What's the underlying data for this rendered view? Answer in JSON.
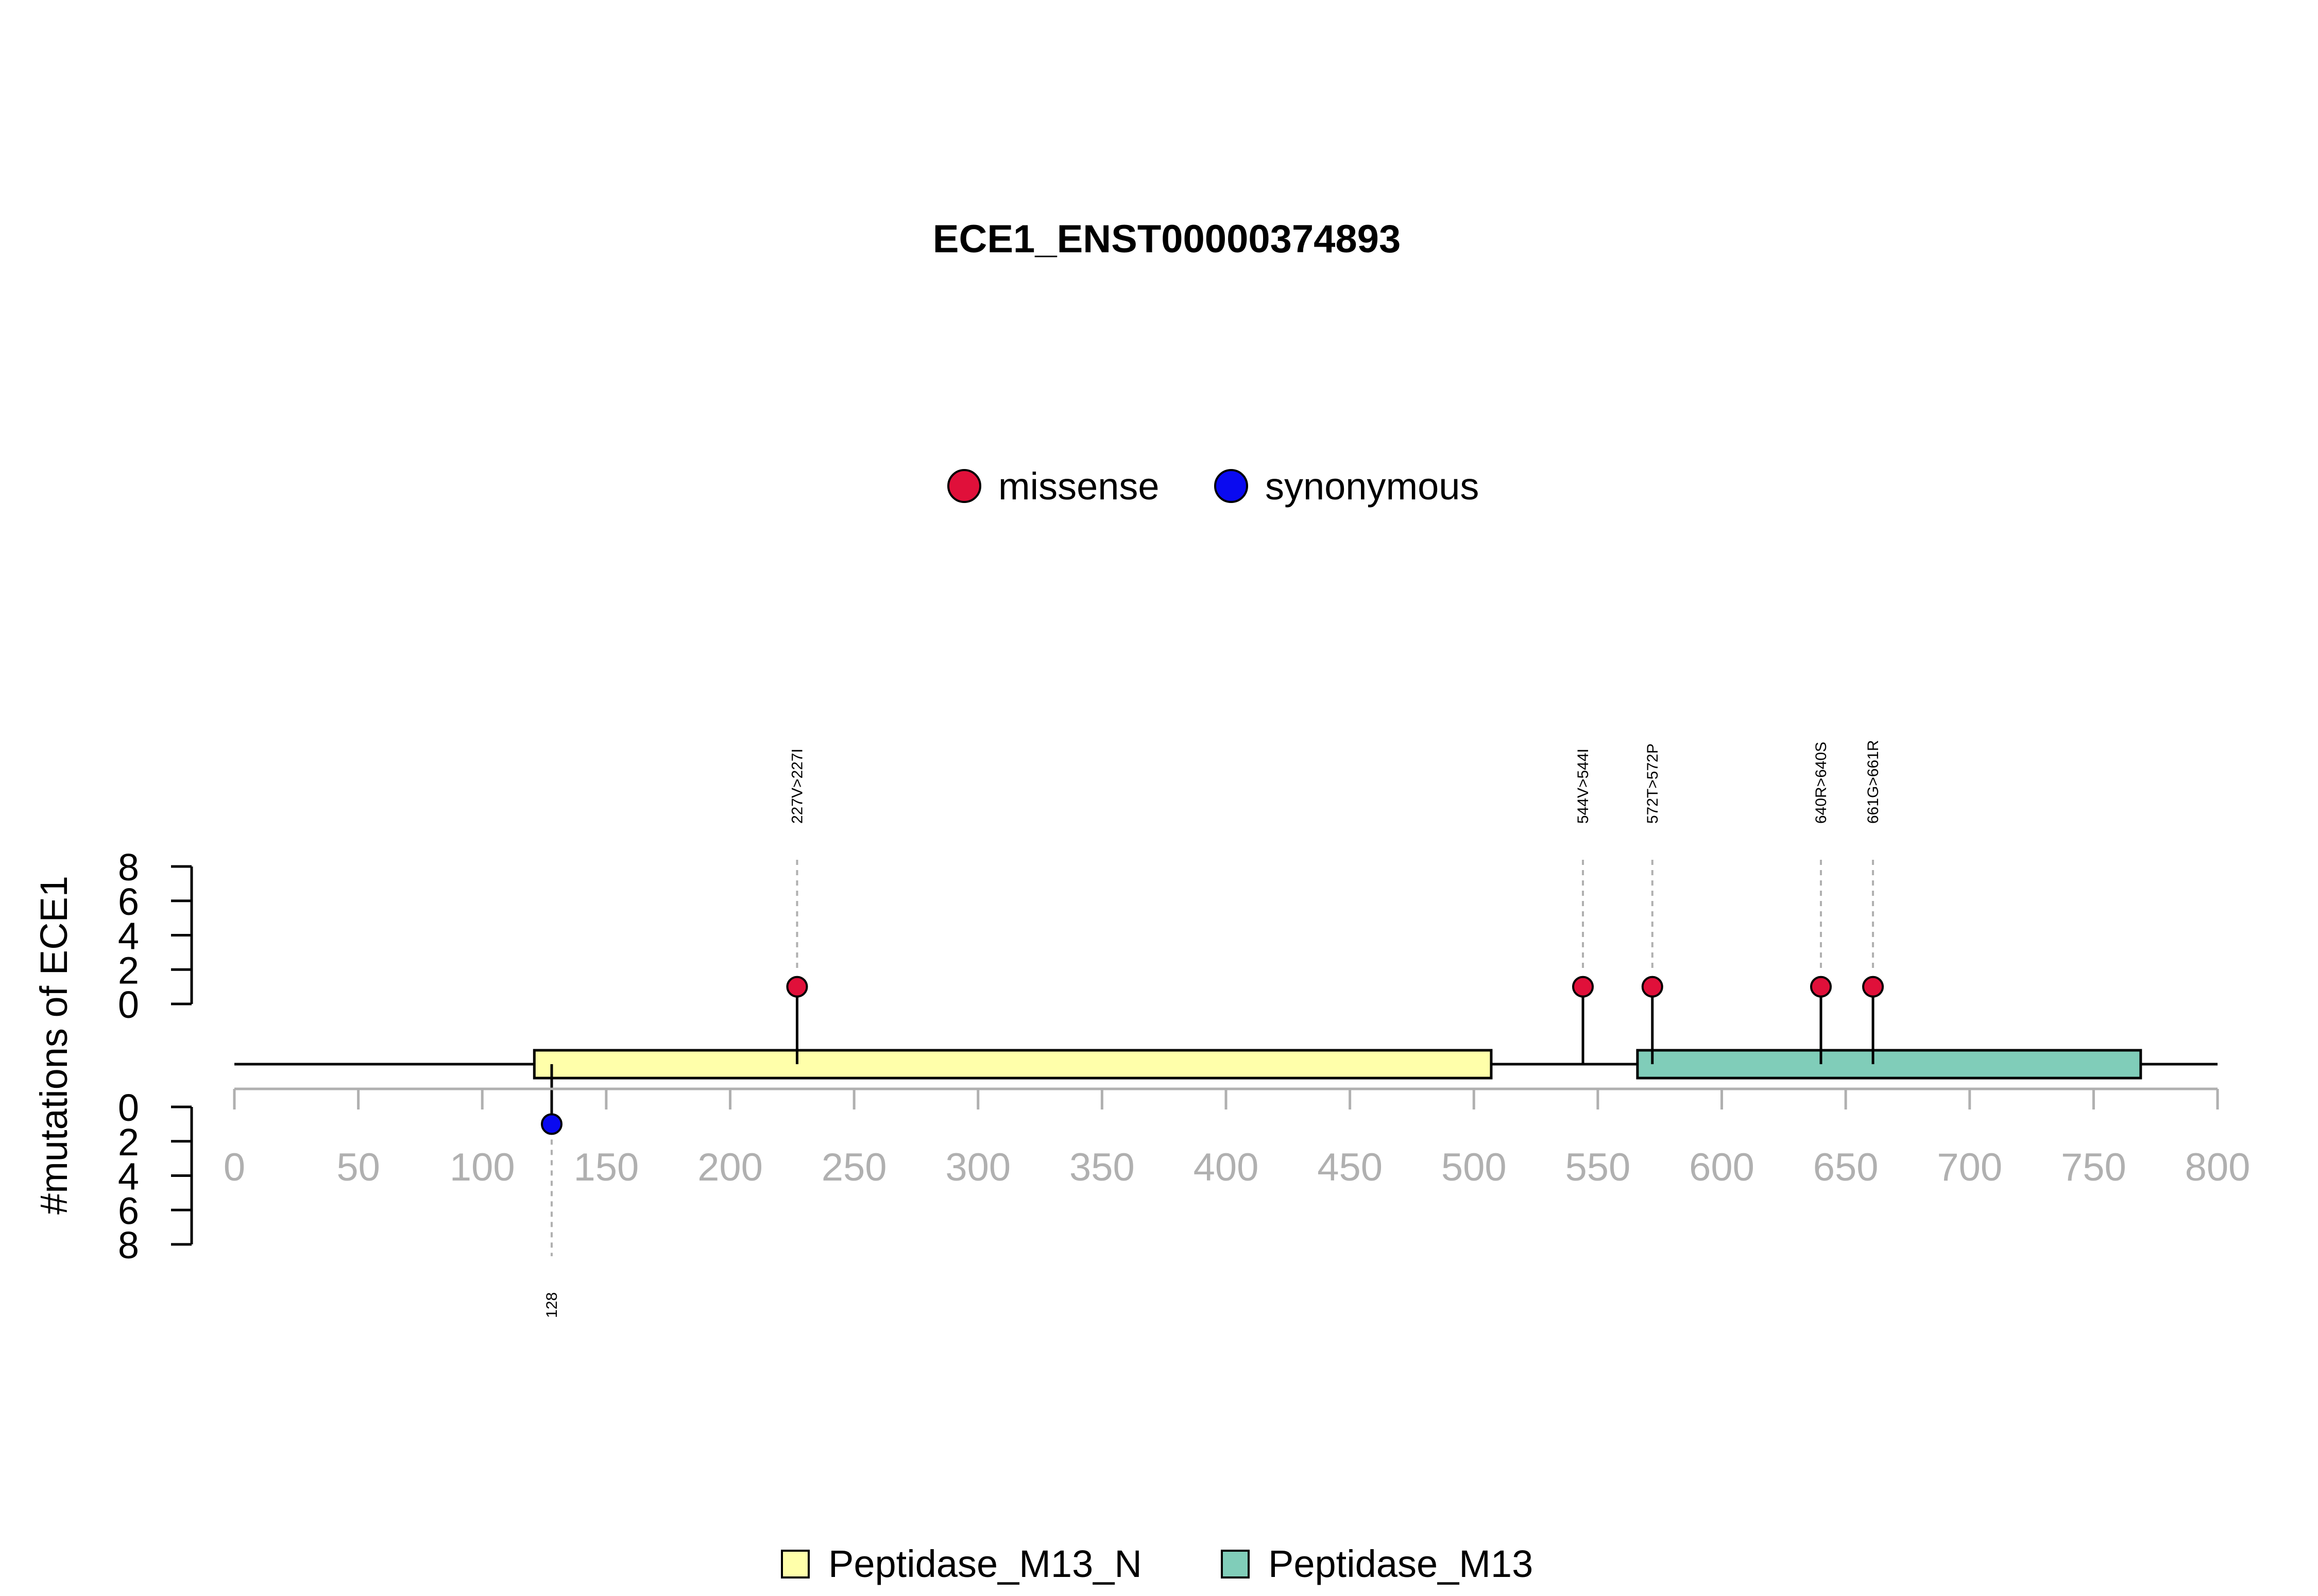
{
  "chart_data": {
    "type": "lollipop",
    "title": "ECE1_ENST00000374893",
    "ylabel": "#mutations of ECE1",
    "xlim": [
      0,
      800
    ],
    "x_ticks": [
      0,
      50,
      100,
      150,
      200,
      250,
      300,
      350,
      400,
      450,
      500,
      550,
      600,
      650,
      700,
      750,
      800
    ],
    "y_ticks_upper": [
      0,
      2,
      4,
      6,
      8
    ],
    "y_ticks_lower": [
      0,
      2,
      4,
      6,
      8
    ],
    "ylim": [
      0,
      8
    ],
    "legend_top": [
      {
        "name": "missense",
        "color": "#e0103a"
      },
      {
        "name": "synonymous",
        "color": "#0a0af0"
      }
    ],
    "legend_bottom": [
      {
        "name": "Peptidase_M13_N",
        "color": "#ffffaa"
      },
      {
        "name": "Peptidase_M13",
        "color": "#80cdb9"
      }
    ],
    "domains": [
      {
        "name": "Peptidase_M13_N",
        "start": 121,
        "end": 507,
        "color": "#ffffaa"
      },
      {
        "name": "Peptidase_M13",
        "start": 566,
        "end": 769,
        "color": "#80cdb9"
      }
    ],
    "protein_length": 800,
    "mutations_upper": [
      {
        "position": 227,
        "count": 1,
        "type": "missense",
        "label": "227V>227I"
      },
      {
        "position": 544,
        "count": 1,
        "type": "missense",
        "label": "544V>544I"
      },
      {
        "position": 572,
        "count": 1,
        "type": "missense",
        "label": "572T>572P"
      },
      {
        "position": 640,
        "count": 1,
        "type": "missense",
        "label": "640R>640S"
      },
      {
        "position": 661,
        "count": 1,
        "type": "missense",
        "label": "661G>661R"
      }
    ],
    "mutations_lower": [
      {
        "position": 128,
        "count": 1,
        "type": "synonymous",
        "label": "128"
      }
    ]
  }
}
